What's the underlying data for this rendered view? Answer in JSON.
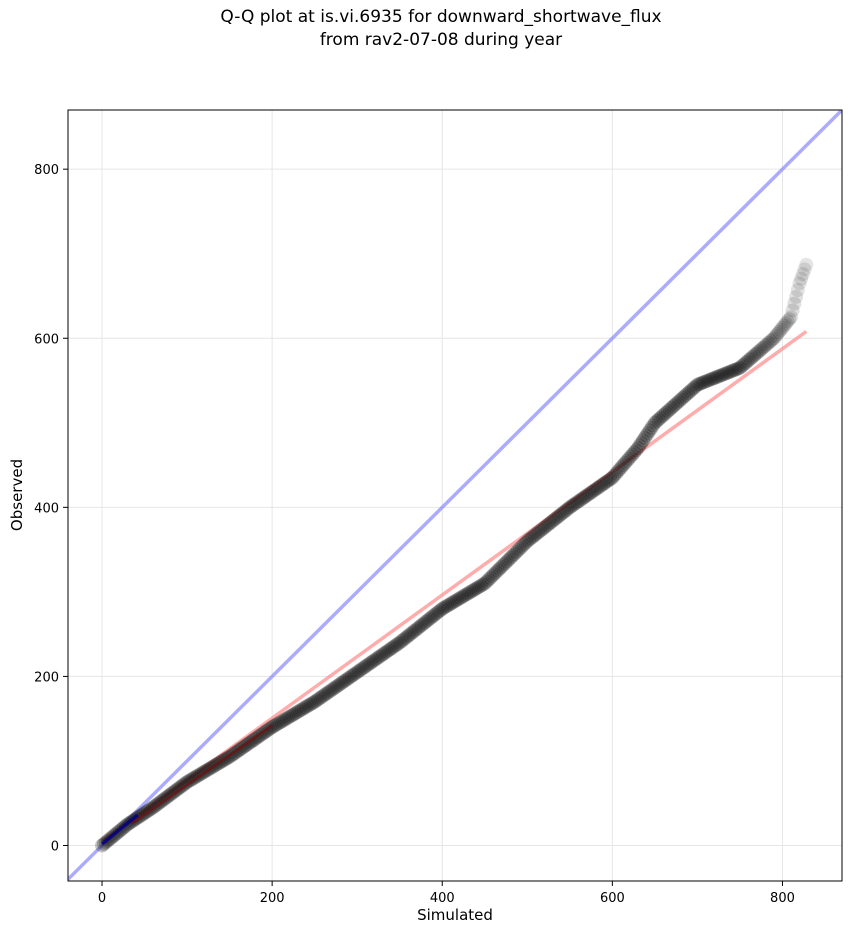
{
  "chart_data": {
    "type": "scatter",
    "title": "Q-Q plot at is.vi.6935 for downward_shortwave_flux",
    "subtitle": "from rav2-07-08 during year",
    "xlabel": "Simulated",
    "ylabel": "Observed",
    "xlim": [
      -40,
      870
    ],
    "ylim": [
      -42,
      870
    ],
    "xticks": [
      0,
      200,
      400,
      600,
      800
    ],
    "yticks": [
      0,
      200,
      400,
      600,
      800
    ],
    "grid": true,
    "colors": {
      "points": "#000000",
      "fit_line": "#ff7f7f",
      "identity_line": "#7f7fff",
      "low_segment": "#00008b",
      "low_fit": "#8b0000"
    },
    "reference_lines": [
      {
        "kind": "identity",
        "x": [
          -40,
          870
        ],
        "y": [
          -40,
          870
        ]
      },
      {
        "kind": "fit",
        "x": [
          0,
          828
        ],
        "y": [
          5,
          608
        ]
      }
    ],
    "quantile_anchors": {
      "x": [
        0,
        30,
        60,
        100,
        150,
        200,
        250,
        300,
        350,
        400,
        450,
        500,
        550,
        600,
        630,
        650,
        700,
        750,
        790,
        810,
        820,
        828
      ],
      "y": [
        0,
        25,
        45,
        75,
        105,
        140,
        170,
        205,
        240,
        280,
        310,
        360,
        400,
        435,
        470,
        500,
        545,
        565,
        600,
        625,
        665,
        687
      ]
    }
  }
}
